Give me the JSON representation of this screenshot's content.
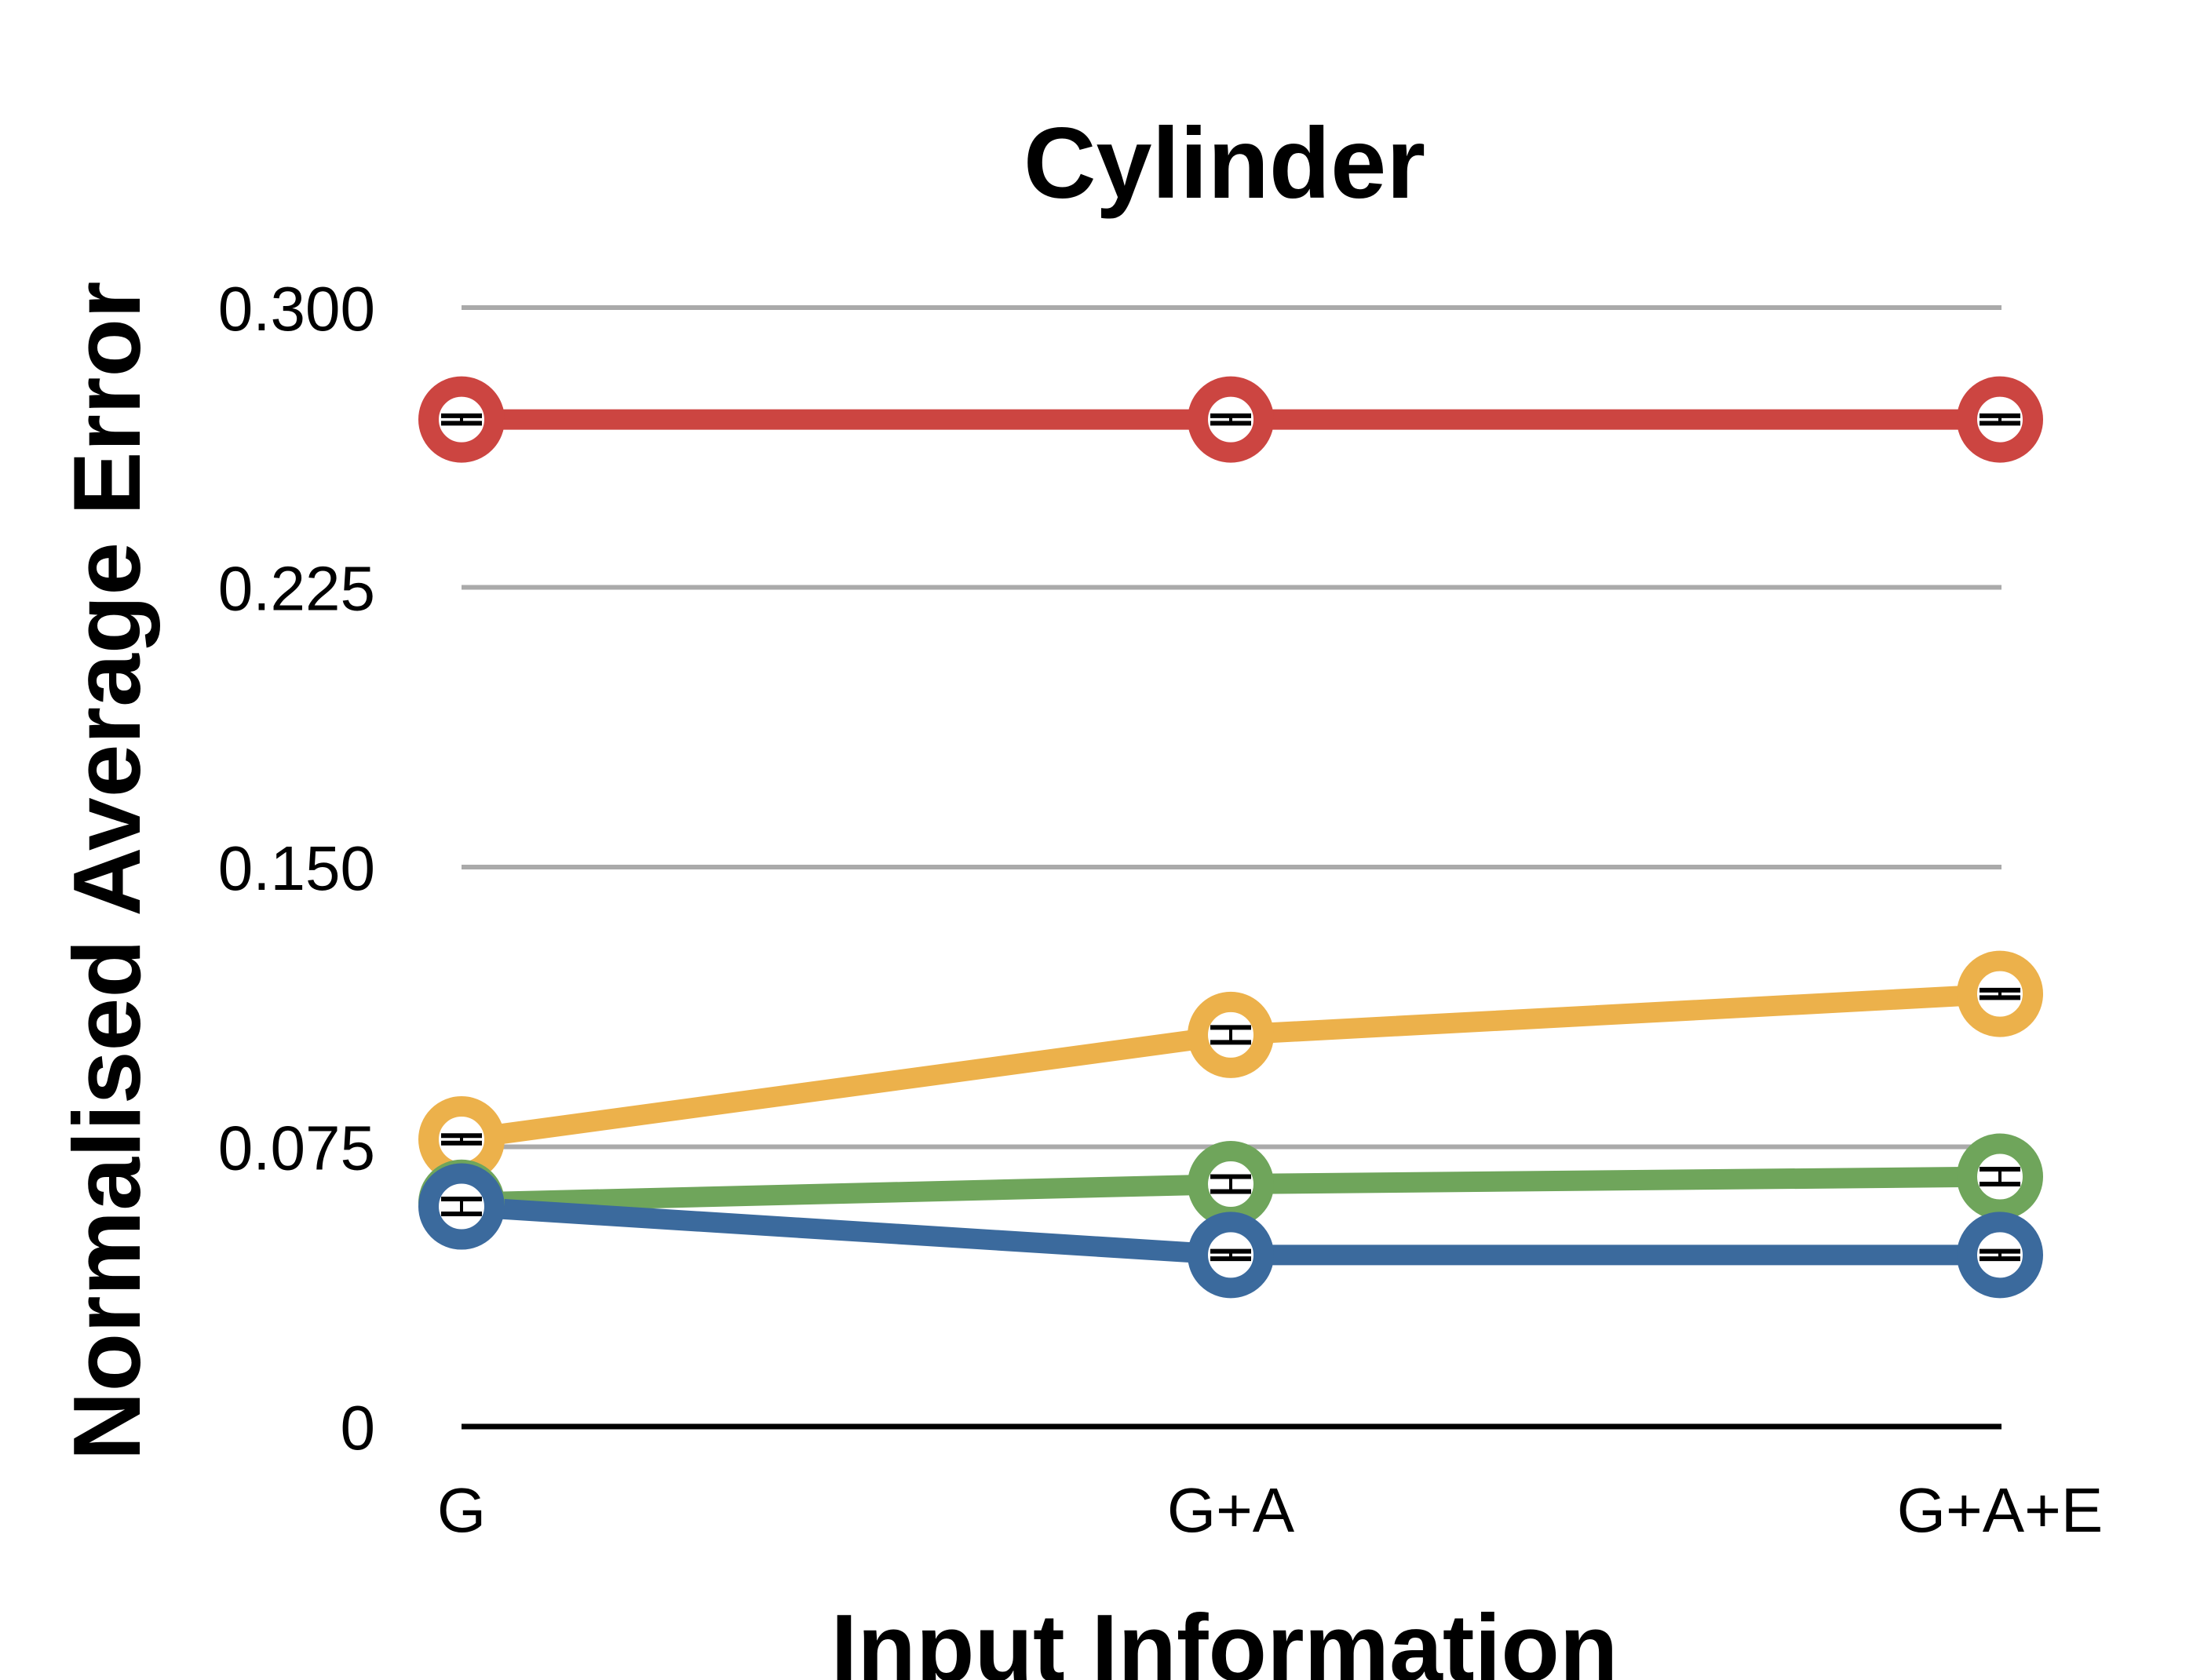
{
  "chart_data": {
    "type": "line",
    "title": "Cylinder",
    "xlabel": "Input Information",
    "ylabel": "Normalised Average Error",
    "categories": [
      "G",
      "G+A",
      "G+A+E"
    ],
    "ylim": [
      0,
      0.3
    ],
    "yticks": [
      0,
      0.075,
      0.15,
      0.225,
      0.3
    ],
    "ytick_labels": [
      "0",
      "0.075",
      "0.150",
      "0.225",
      "0.300"
    ],
    "grid": true,
    "legend": "none",
    "series": [
      {
        "color": "#cc4541",
        "values": [
          0.27,
          0.27,
          0.27
        ],
        "error": [
          0.001,
          0.001,
          0.001
        ]
      },
      {
        "color": "#ecb14b",
        "values": [
          0.077,
          0.105,
          0.116
        ],
        "error": [
          0.001,
          0.002,
          0.001
        ]
      },
      {
        "color": "#6fa55b",
        "values": [
          0.06,
          0.065,
          0.067
        ],
        "error": [
          0.001,
          0.002,
          0.002
        ]
      },
      {
        "color": "#3b6a9d",
        "values": [
          0.059,
          0.046,
          0.046
        ],
        "error": [
          0.002,
          0.001,
          0.001
        ]
      }
    ]
  }
}
